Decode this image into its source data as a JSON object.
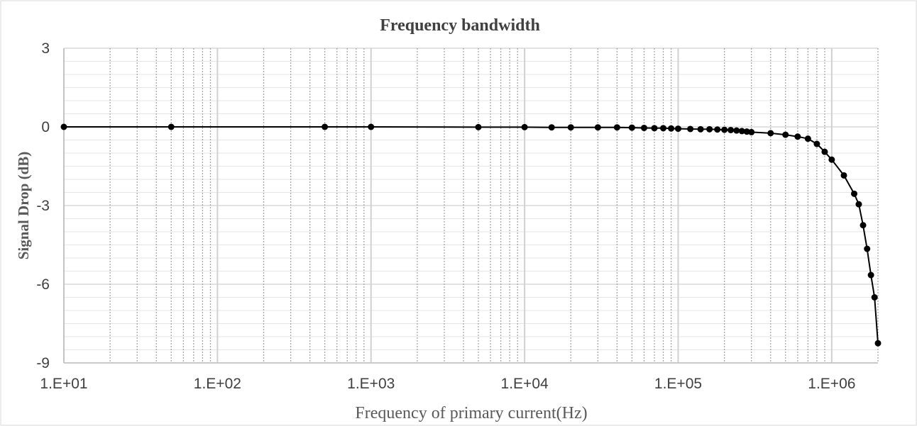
{
  "chart_data": {
    "type": "scatter",
    "title": "Frequency bandwidth",
    "xlabel": "Frequency of primary current(Hz)",
    "ylabel": "Signal Drop (dB)",
    "x_scale": "log",
    "xlim": [
      10,
      2000000
    ],
    "ylim": [
      -9,
      3
    ],
    "x_ticks": [
      10,
      100,
      1000,
      10000,
      100000,
      1000000
    ],
    "x_tick_labels": [
      "1.E+01",
      "1.E+02",
      "1.E+03",
      "1.E+04",
      "1.E+05",
      "1.E+06"
    ],
    "y_ticks": [
      -9,
      -6,
      -3,
      0,
      3
    ],
    "y_tick_labels": [
      "-9",
      "-6",
      "-3",
      "0",
      "3"
    ],
    "grid": true,
    "line_color": "#000000",
    "marker_color": "#000000",
    "series": [
      {
        "x": [
          10,
          50,
          500,
          1000,
          5000,
          10000,
          15000,
          20000,
          30000,
          40000,
          50000,
          60000,
          70000,
          80000,
          90000,
          100000,
          120000,
          140000,
          160000,
          180000,
          200000,
          220000,
          240000,
          260000,
          280000,
          300000,
          400000,
          500000,
          600000,
          700000,
          800000,
          900000,
          1000000,
          1200000,
          1400000,
          1500000,
          1600000,
          1700000,
          1800000,
          1900000,
          2000000
        ],
        "y": [
          0,
          0,
          0,
          0,
          -0.01,
          -0.01,
          -0.02,
          -0.02,
          -0.02,
          -0.02,
          -0.03,
          -0.04,
          -0.05,
          -0.05,
          -0.06,
          -0.07,
          -0.08,
          -0.09,
          -0.09,
          -0.1,
          -0.11,
          -0.12,
          -0.14,
          -0.16,
          -0.18,
          -0.2,
          -0.24,
          -0.3,
          -0.37,
          -0.45,
          -0.65,
          -0.95,
          -1.25,
          -1.85,
          -2.55,
          -2.95,
          -3.75,
          -4.65,
          -5.65,
          -6.5,
          -8.25
        ]
      }
    ]
  }
}
